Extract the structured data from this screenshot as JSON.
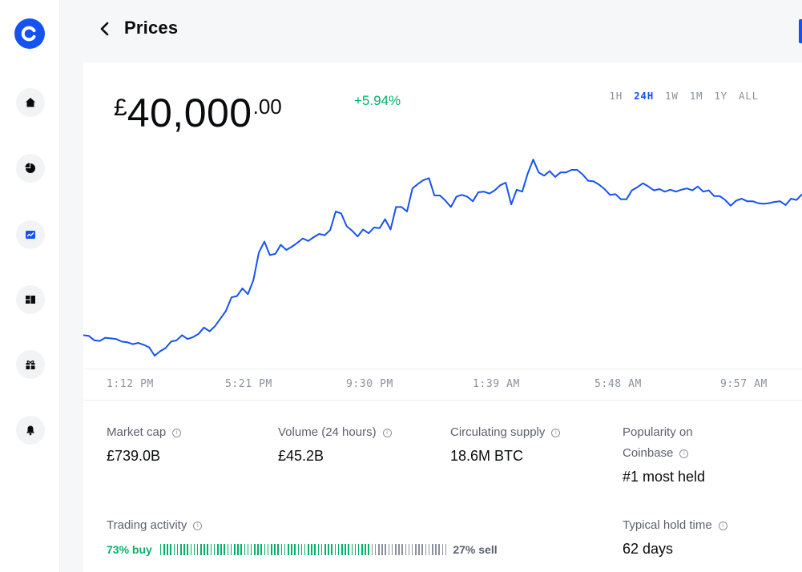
{
  "app": {
    "logo_letter": "C",
    "brand_color": "#1652f0"
  },
  "sidebar": {
    "items": [
      {
        "name": "home-icon"
      },
      {
        "name": "portfolio-icon"
      },
      {
        "name": "trade-chart-icon"
      },
      {
        "name": "dashboard-icon"
      },
      {
        "name": "gift-icon"
      },
      {
        "name": "notifications-icon"
      }
    ]
  },
  "header": {
    "back_icon": "chevron-left-icon",
    "title": "Prices"
  },
  "price": {
    "currency": "£",
    "whole": "40,000",
    "decimal": ".00",
    "change": "+5.94%",
    "change_color": "#05b169"
  },
  "ranges": [
    "1H",
    "24H",
    "1W",
    "1M",
    "1Y",
    "ALL"
  ],
  "active_range": "24H",
  "chart_data": {
    "type": "line",
    "x_ticks": [
      "1:12 PM",
      "5:21 PM",
      "9:30 PM",
      "1:39 AM",
      "5:48 AM",
      "9:57 AM"
    ],
    "line_color": "#1652f0",
    "series": [
      {
        "values": [
          38720,
          38710,
          38640,
          38630,
          38680,
          38670,
          38660,
          38620,
          38610,
          38580,
          38600,
          38570,
          38530,
          38400,
          38470,
          38520,
          38620,
          38640,
          38720,
          38660,
          38690,
          38740,
          38840,
          38780,
          38860,
          38980,
          39100,
          39310,
          39330,
          39450,
          39360,
          39580,
          40010,
          40180,
          39970,
          39990,
          40130,
          40050,
          40100,
          40160,
          40230,
          40190,
          40250,
          40300,
          40280,
          40360,
          40650,
          40620,
          40420,
          40350,
          40260,
          40370,
          40310,
          40400,
          40390,
          40530,
          40370,
          40720,
          40720,
          40650,
          41010,
          41080,
          41140,
          41170,
          40900,
          40900,
          40820,
          40720,
          40880,
          40910,
          40880,
          40810,
          40950,
          40960,
          40930,
          40980,
          41060,
          41100,
          40760,
          40990,
          40960,
          41240,
          41460,
          41260,
          41210,
          41280,
          41190,
          41260,
          41260,
          41300,
          41300,
          41230,
          41130,
          41120,
          41070,
          41000,
          40910,
          40920,
          40840,
          40840,
          40980,
          41030,
          41090,
          41040,
          40980,
          41000,
          40960,
          40990,
          40960,
          40990,
          41010,
          40980,
          41040,
          40960,
          40980,
          40890,
          40890,
          40830,
          40740,
          40820,
          40850,
          40810,
          40810,
          40780,
          40770,
          40780,
          40800,
          40810,
          40750,
          40850,
          40830,
          40920
        ]
      }
    ],
    "ylim": [
      38200,
      41600
    ]
  },
  "stats": [
    {
      "label": "Market cap",
      "value": "£739.0B"
    },
    {
      "label": "Volume (24 hours)",
      "value": "£45.2B"
    },
    {
      "label": "Circulating supply",
      "value": "18.6M BTC"
    },
    {
      "label_line1": "Popularity on",
      "label_line2": "Coinbase",
      "value": "#1 most held"
    },
    {
      "label": "Trading activity"
    },
    {
      "label": "Typical hold time",
      "value": "62 days"
    }
  ],
  "trading": {
    "buy_label": "73% buy",
    "sell_label": "27% sell",
    "buy_fraction": 0.73,
    "buy_color": "#05b169",
    "sell_color": "#8a919e"
  },
  "info_icon_glyph": "i"
}
